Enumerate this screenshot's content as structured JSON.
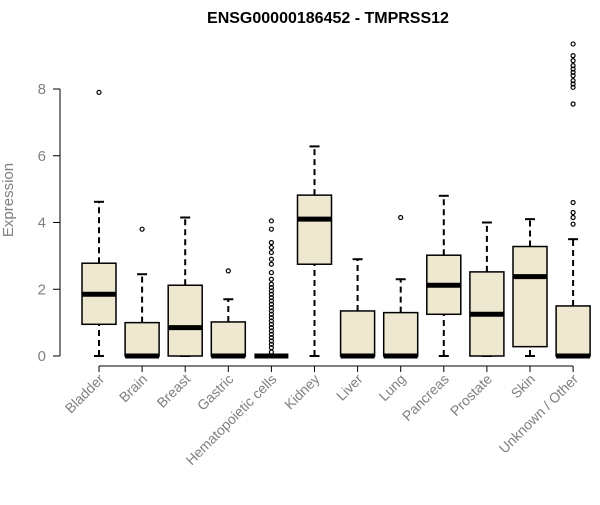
{
  "chart_data": {
    "type": "boxplot",
    "title": "ENSG00000186452 - TMPRSS12",
    "xlabel": "",
    "ylabel": "Expression",
    "ylim": [
      0,
      9.3
    ],
    "yticks": [
      0,
      2,
      4,
      6,
      8
    ],
    "grid": false,
    "legend": "none",
    "box_fill": "#efe8d0",
    "line_color": "#000000",
    "axis_label_color": "#808080",
    "categories": [
      "Bladder",
      "Brain",
      "Breast",
      "Gastric",
      "Hematopoietic cells",
      "Kidney",
      "Liver",
      "Lung",
      "Pancreas",
      "Prostate",
      "Skin",
      "Unknown / Other"
    ],
    "boxes": [
      {
        "category": "Bladder",
        "whisker_low": 0,
        "q1": 0.95,
        "median": 1.85,
        "q3": 2.78,
        "whisker_high": 4.62,
        "outliers": [
          7.9
        ]
      },
      {
        "category": "Brain",
        "whisker_low": 0,
        "q1": 0,
        "median": 0,
        "q3": 1.0,
        "whisker_high": 2.45,
        "outliers": [
          3.8
        ]
      },
      {
        "category": "Breast",
        "whisker_low": 0,
        "q1": 0,
        "median": 0.85,
        "q3": 2.12,
        "whisker_high": 4.15,
        "outliers": []
      },
      {
        "category": "Gastric",
        "whisker_low": 0,
        "q1": 0,
        "median": 0,
        "q3": 1.02,
        "whisker_high": 1.7,
        "outliers": [
          2.55
        ]
      },
      {
        "category": "Hematopoietic cells",
        "whisker_low": 0,
        "q1": 0,
        "median": 0,
        "q3": 0,
        "whisker_high": 0,
        "outliers": [
          0.12,
          0.25,
          0.35,
          0.45,
          0.55,
          0.65,
          0.75,
          0.85,
          0.95,
          1.05,
          1.15,
          1.25,
          1.35,
          1.45,
          1.55,
          1.65,
          1.75,
          1.85,
          1.95,
          2.05,
          2.15,
          2.3,
          2.5,
          2.75,
          2.9,
          3.1,
          3.25,
          3.4,
          3.8,
          4.05
        ]
      },
      {
        "category": "Kidney",
        "whisker_low": 0,
        "q1": 2.75,
        "median": 4.1,
        "q3": 4.82,
        "whisker_high": 6.28,
        "outliers": []
      },
      {
        "category": "Liver",
        "whisker_low": 0,
        "q1": 0,
        "median": 0,
        "q3": 1.35,
        "whisker_high": 2.9,
        "outliers": []
      },
      {
        "category": "Lung",
        "whisker_low": 0,
        "q1": 0,
        "median": 0,
        "q3": 1.3,
        "whisker_high": 2.3,
        "outliers": [
          4.15
        ]
      },
      {
        "category": "Pancreas",
        "whisker_low": 0,
        "q1": 1.25,
        "median": 2.12,
        "q3": 3.02,
        "whisker_high": 4.8,
        "outliers": []
      },
      {
        "category": "Prostate",
        "whisker_low": 0,
        "q1": 0,
        "median": 1.25,
        "q3": 2.52,
        "whisker_high": 4.0,
        "outliers": []
      },
      {
        "category": "Skin",
        "whisker_low": 0,
        "q1": 0.28,
        "median": 2.38,
        "q3": 3.28,
        "whisker_high": 4.1,
        "outliers": []
      },
      {
        "category": "Unknown / Other",
        "whisker_low": 0,
        "q1": 0,
        "median": 0,
        "q3": 1.5,
        "whisker_high": 3.5,
        "outliers": [
          3.95,
          4.15,
          4.3,
          4.6,
          7.55,
          8.05,
          8.15,
          8.25,
          8.4,
          8.5,
          8.6,
          8.7,
          8.85,
          9.0,
          9.35
        ]
      }
    ]
  }
}
